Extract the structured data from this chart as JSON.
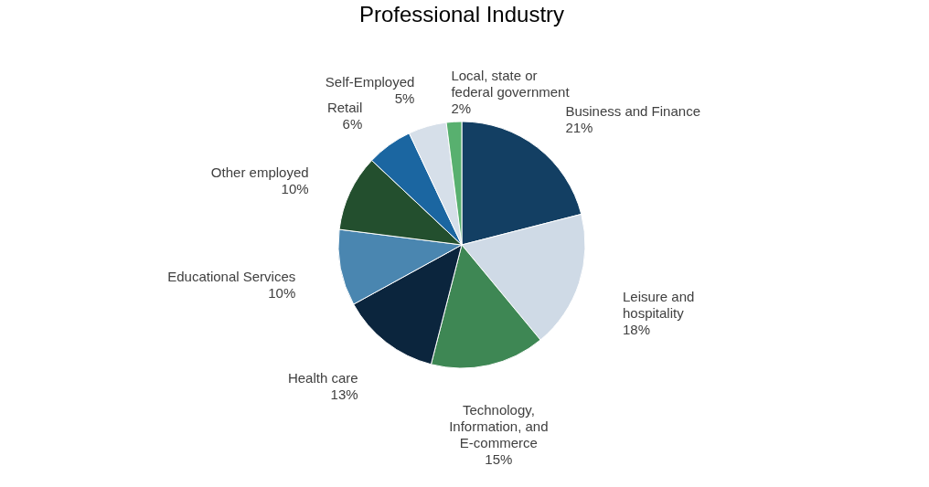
{
  "chart_data": {
    "type": "pie",
    "title": "Professional Industry",
    "categories": [
      "Business and Finance",
      "Leisure and hospitality",
      "Technology, Information, and E-commerce",
      "Health care",
      "Educational Services",
      "Other employed",
      "Retail",
      "Self-Employed",
      "Local, state or federal government"
    ],
    "values": [
      21,
      18,
      15,
      13,
      10,
      10,
      6,
      5,
      2
    ],
    "value_labels": [
      "21%",
      "18%",
      "15%",
      "13%",
      "10%",
      "10%",
      "6%",
      "5%",
      "2%"
    ],
    "colors": [
      "#133f63",
      "#cfdae6",
      "#3e8754",
      "#0b253d",
      "#4a86b0",
      "#234f2e",
      "#1b66a1",
      "#d6dfe9",
      "#58b06f"
    ],
    "legend": false
  }
}
